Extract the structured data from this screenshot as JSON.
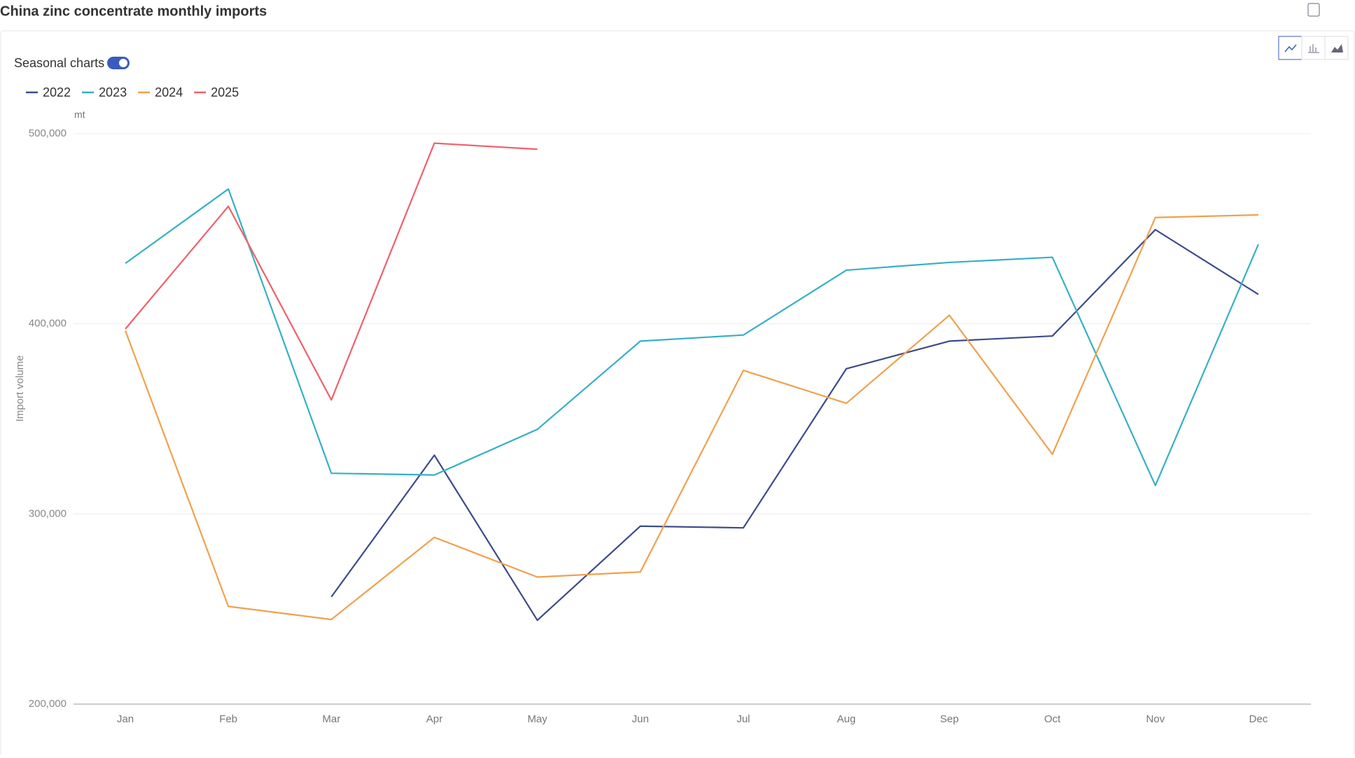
{
  "chart_data": {
    "type": "line",
    "title": "China zinc concentrate monthly imports",
    "toggle_label": "Seasonal charts",
    "unit": "mt",
    "y_label": "Import volume",
    "categories": [
      "Jan",
      "Feb",
      "Mar",
      "Apr",
      "May",
      "Jun",
      "Jul",
      "Aug",
      "Sep",
      "Oct",
      "Nov",
      "Dec"
    ],
    "series": [
      {
        "name": "2022",
        "color": "#3d4a8a",
        "values": [
          null,
          null,
          256400,
          330900,
          244100,
          293600,
          292700,
          376400,
          390900,
          393600,
          449500,
          415500
        ]
      },
      {
        "name": "2023",
        "color": "#36b0c4",
        "values": [
          431800,
          470900,
          321400,
          320500,
          344500,
          390900,
          394100,
          428200,
          432300,
          435000,
          315000,
          441800
        ]
      },
      {
        "name": "2024",
        "color": "#f0a14e",
        "values": [
          396400,
          251400,
          244500,
          287700,
          266800,
          269500,
          375500,
          358200,
          404500,
          331400,
          455900,
          457300
        ]
      },
      {
        "name": "2025",
        "color": "#f0606a",
        "values": [
          397300,
          461800,
          360000,
          495000,
          491800,
          null,
          null,
          null,
          null,
          null,
          null,
          null
        ]
      }
    ],
    "ylim": [
      200000,
      500000
    ],
    "yticks": [
      {
        "value": 200000,
        "label": "200,000"
      },
      {
        "value": 300000,
        "label": "300,000"
      },
      {
        "value": 400000,
        "label": "400,000"
      },
      {
        "value": 500000,
        "label": "500,000"
      }
    ],
    "grid": true
  }
}
